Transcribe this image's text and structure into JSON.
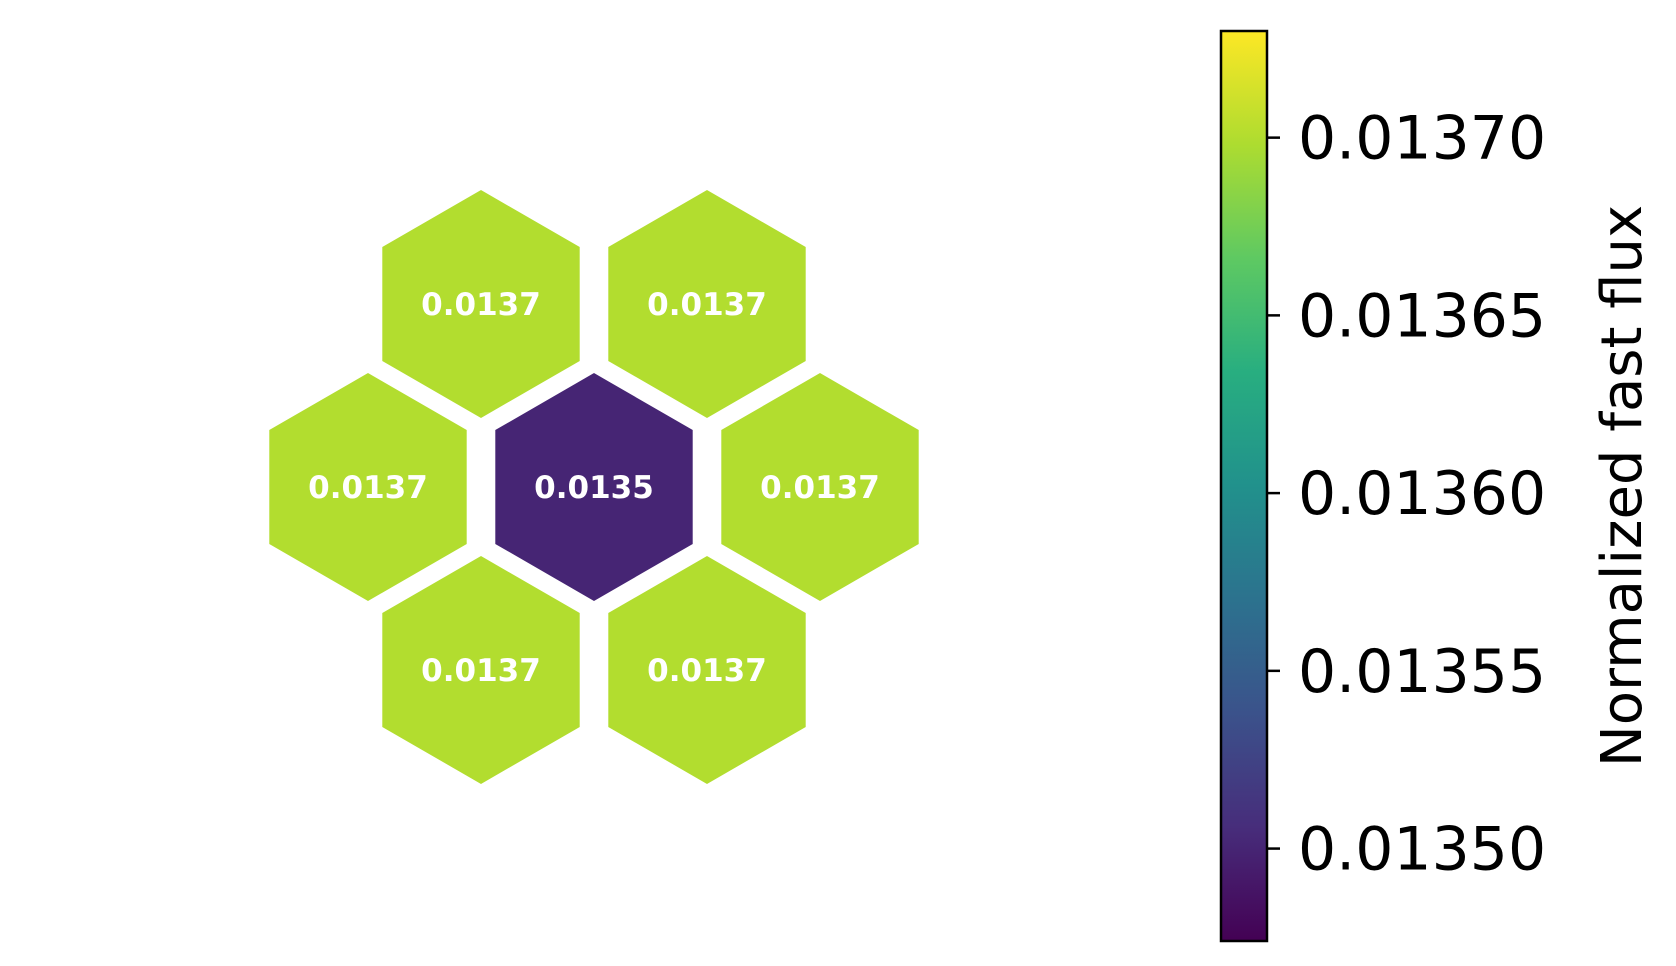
{
  "chart_data": {
    "type": "heatmap",
    "layout": "hexagonal",
    "cells": [
      {
        "position": "top-left",
        "value": 0.0137,
        "label": "0.0137"
      },
      {
        "position": "top-right",
        "value": 0.0137,
        "label": "0.0137"
      },
      {
        "position": "middle-left",
        "value": 0.0137,
        "label": "0.0137"
      },
      {
        "position": "center",
        "value": 0.0135,
        "label": "0.0135"
      },
      {
        "position": "middle-right",
        "value": 0.0137,
        "label": "0.0137"
      },
      {
        "position": "bottom-left",
        "value": 0.0137,
        "label": "0.0137"
      },
      {
        "position": "bottom-right",
        "value": 0.0137,
        "label": "0.0137"
      }
    ],
    "colorbar": {
      "label": "Normalized fast flux",
      "colormap": "viridis",
      "range": [
        0.013474,
        0.01373
      ],
      "ticks": [
        0.0135,
        0.01355,
        0.0136,
        0.01365,
        0.0137
      ],
      "tick_labels": [
        "0.01350",
        "0.01355",
        "0.01360",
        "0.01365",
        "0.01370"
      ],
      "orientation": "vertical",
      "position": "right"
    },
    "colors": {
      "high": "#fde725",
      "low": "#440154",
      "cell_edge": "#ffffff",
      "label_text": "#ffffff"
    }
  }
}
